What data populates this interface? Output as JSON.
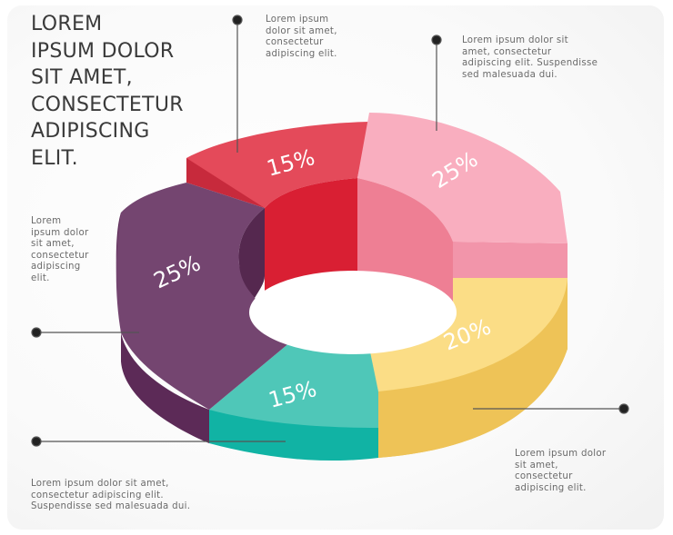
{
  "title": "LOREM\nIPSUM DOLOR\nSIT AMET,\nCONSECTETUR\nADIPISCING\nELIT.",
  "annotations": {
    "top_center": "Lorem ipsum\ndolor sit amet,\nconsectetur\nadipiscing elit.",
    "top_right": "Lorem ipsum dolor sit\namet, consectetur\nadipiscing elit. Suspendisse\nsed malesuada dui.",
    "left": "Lorem\nipsum dolor\nsit amet,\nconsectetur\nadipiscing\nelit.",
    "bottom_left": "Lorem ipsum dolor sit amet,\nconsectetur adipiscing elit.\nSuspendisse sed malesuada dui.",
    "bottom_right": "Lorem ipsum dolor\nsit amet,\nconsectetur\nadipiscing elit."
  },
  "chart_data": {
    "type": "pie",
    "variant": "3d-donut",
    "title": "",
    "slices": [
      {
        "value": 15,
        "label": "15%",
        "color": "#e44a5a"
      },
      {
        "value": 25,
        "label": "25%",
        "color": "#f9aebf"
      },
      {
        "value": 20,
        "label": "20%",
        "color": "#fbdd86"
      },
      {
        "value": 15,
        "label": "15%",
        "color": "#4fc7b8"
      },
      {
        "value": 25,
        "label": "25%",
        "color": "#744570"
      }
    ],
    "colors": {
      "red_side": "#c72a3c",
      "pink_side": "#f295aa",
      "yellow_side": "#eec357",
      "teal_side": "#11b3a4",
      "purple_side": "#5c2a57",
      "red_inner": "#d91f33",
      "pink_inner": "#ee7f94",
      "purple_inner": "#55284f"
    }
  }
}
